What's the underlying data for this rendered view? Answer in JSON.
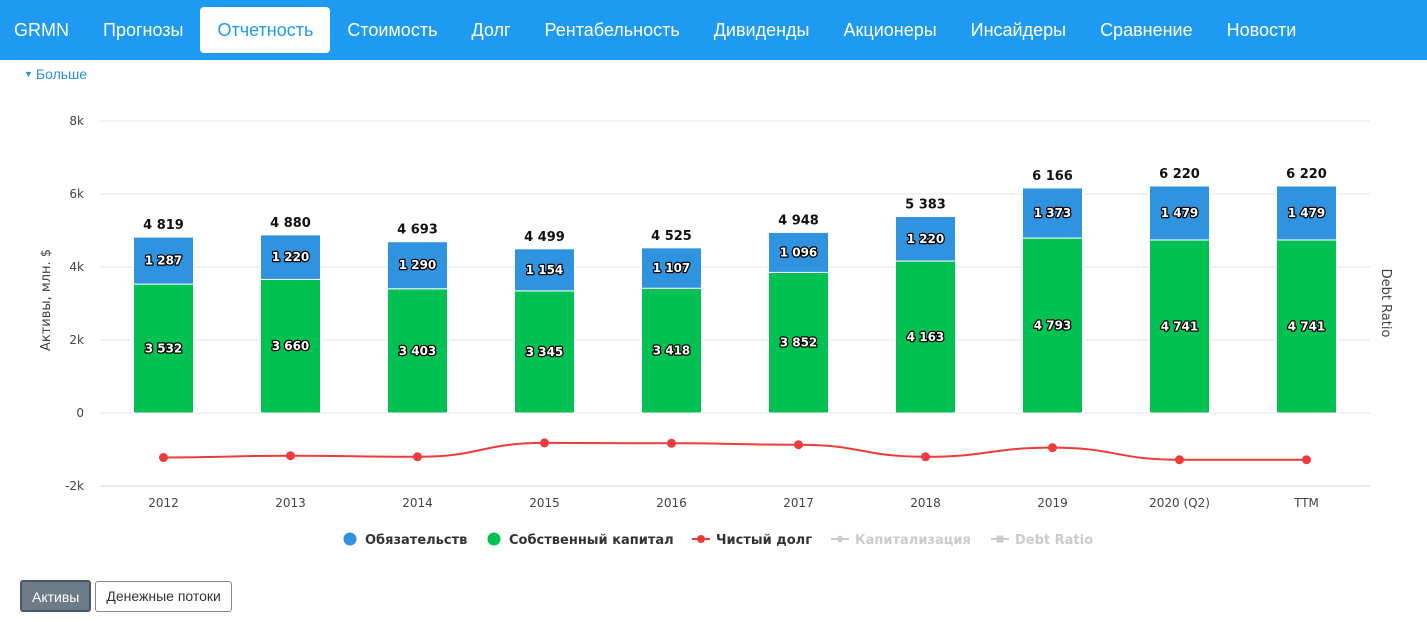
{
  "nav": {
    "brand": "GRMN",
    "items": [
      "Прогнозы",
      "Отчетность",
      "Стоимость",
      "Долг",
      "Рентабельность",
      "Дивиденды",
      "Акционеры",
      "Инсайдеры",
      "Сравнение",
      "Новости"
    ],
    "active_index": 1
  },
  "more_label": "Больше",
  "buttons": {
    "assets": "Активы",
    "cashflow": "Денежные потоки"
  },
  "chart_data": {
    "type": "bar",
    "stacked": true,
    "categories": [
      "2012",
      "2013",
      "2014",
      "2015",
      "2016",
      "2017",
      "2018",
      "2019",
      "2020 (Q2)",
      "TTM"
    ],
    "series": [
      {
        "name": "Собственный капитал",
        "type": "bar",
        "color": "#00c152",
        "values": [
          3532,
          3660,
          3403,
          3345,
          3418,
          3852,
          4163,
          4793,
          4741,
          4741
        ],
        "labels": [
          "3 532",
          "3 660",
          "3 403",
          "3 345",
          "3 418",
          "3 852",
          "4 163",
          "4 793",
          "4 741",
          "4 741"
        ]
      },
      {
        "name": "Обязательств",
        "type": "bar",
        "color": "#2f93e0",
        "values": [
          1287,
          1220,
          1290,
          1154,
          1107,
          1096,
          1220,
          1373,
          1479,
          1479
        ],
        "labels": [
          "1 287",
          "1 220",
          "1 290",
          "1 154",
          "1 107",
          "1 096",
          "1 220",
          "1 373",
          "1 479",
          "1 479"
        ]
      },
      {
        "name": "Чистый долг",
        "type": "line",
        "color": "#ee3b3b",
        "values": [
          -1220,
          -1170,
          -1200,
          -820,
          -830,
          -870,
          -1200,
          -950,
          -1280,
          -1280
        ]
      }
    ],
    "totals": [
      "4 819",
      "4 880",
      "4 693",
      "4 499",
      "4 525",
      "4 948",
      "5 383",
      "6 166",
      "6 220",
      "6 220"
    ],
    "ylabel": "Активы, млн. $",
    "ylabel_right": "Debt Ratio",
    "ylim": [
      -2000,
      8000
    ],
    "yticks": [
      -2000,
      0,
      2000,
      4000,
      6000,
      8000
    ],
    "ytick_labels": [
      "-2k",
      "0",
      "2k",
      "4k",
      "6k",
      "8k"
    ],
    "grid": true,
    "legend": {
      "position": "bottom",
      "items": [
        {
          "name": "Обязательств",
          "color": "#2f93e0",
          "marker": "circle",
          "enabled": true
        },
        {
          "name": "Собственный капитал",
          "color": "#00c152",
          "marker": "circle",
          "enabled": true
        },
        {
          "name": "Чистый долг",
          "color": "#ee3b3b",
          "marker": "line-circle",
          "enabled": true
        },
        {
          "name": "Капитализация",
          "color": "#cccccc",
          "marker": "line-diamond",
          "enabled": false
        },
        {
          "name": "Debt Ratio",
          "color": "#cccccc",
          "marker": "line-square",
          "enabled": false
        }
      ]
    }
  }
}
